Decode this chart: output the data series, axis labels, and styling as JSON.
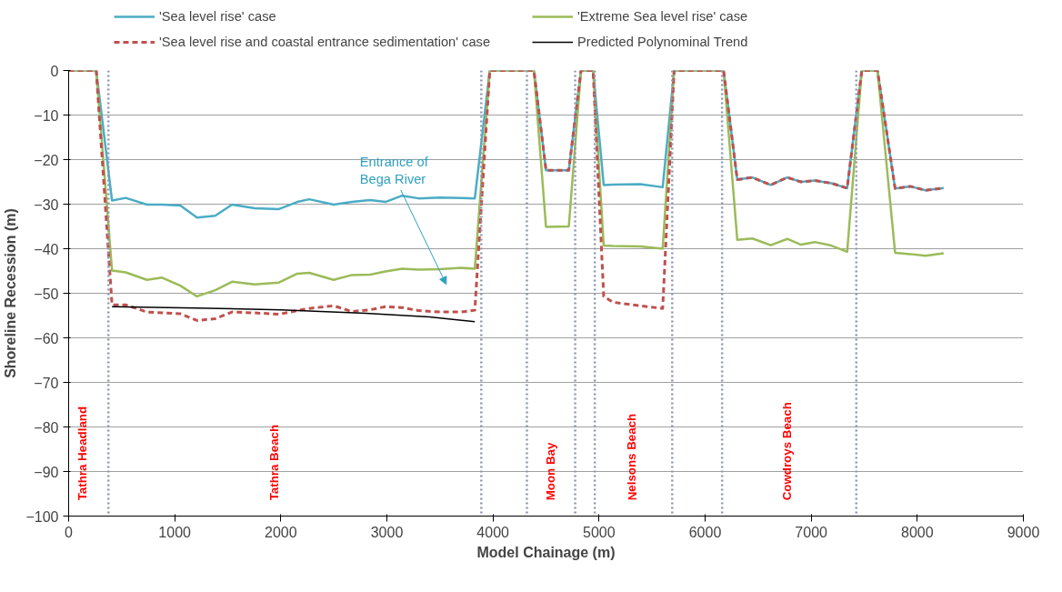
{
  "chart_data": {
    "type": "line",
    "xlabel": "Model Chainage (m)",
    "ylabel": "Shoreline Recession (m)",
    "xlim": [
      0,
      9000
    ],
    "xticks": [
      0,
      1000,
      2000,
      3000,
      4000,
      5000,
      6000,
      7000,
      8000,
      9000
    ],
    "ylim": [
      -100,
      0
    ],
    "yticks": [
      -100,
      -90,
      -80,
      -70,
      -60,
      -50,
      -40,
      -30,
      -20,
      -10,
      0
    ],
    "grid": "y",
    "legend": "top",
    "marker": "none",
    "x": [
      0,
      260,
      409,
      538,
      738,
      881,
      1053,
      1210,
      1382,
      1540,
      1754,
      1983,
      2155,
      2269,
      2498,
      2670,
      2842,
      2986,
      3143,
      3300,
      3500,
      3700,
      3829,
      3970,
      4386,
      4500,
      4715,
      4830,
      4944,
      5044,
      5130,
      5388,
      5600,
      5708,
      6174,
      6303,
      6446,
      6618,
      6775,
      6904,
      7033,
      7190,
      7339,
      7477,
      7625,
      7791,
      7934,
      8077,
      8249
    ],
    "series": [
      {
        "name": "'Sea level rise' case",
        "color": "#4bacc6",
        "line_style": "solid",
        "values": [
          0,
          0,
          -29.2,
          -28.6,
          -30.1,
          -30.1,
          -30.3,
          -33.0,
          -32.6,
          -30.1,
          -30.9,
          -31.1,
          -29.5,
          -28.9,
          -30.1,
          -29.5,
          -29.1,
          -29.5,
          -28.1,
          -28.7,
          -28.5,
          -28.6,
          -28.7,
          0,
          0,
          -22.4,
          -22.4,
          0,
          0,
          -25.7,
          -25.6,
          -25.5,
          -26.2,
          0,
          0,
          -24.5,
          -24.0,
          -25.7,
          -24.0,
          -25.0,
          -24.7,
          -25.3,
          -26.4,
          0,
          0,
          -26.5,
          -26.0,
          -26.9,
          -26.4
        ]
      },
      {
        "name": "'Extreme Sea level rise' case",
        "color": "#9bbb59",
        "line_style": "solid",
        "values": [
          0,
          0,
          -44.9,
          -45.3,
          -47.0,
          -46.5,
          -48.3,
          -50.7,
          -49.3,
          -47.4,
          -48.0,
          -47.6,
          -45.6,
          -45.4,
          -47.0,
          -45.9,
          -45.8,
          -45.1,
          -44.5,
          -44.7,
          -44.6,
          -44.3,
          -44.5,
          0,
          0,
          -35.1,
          -35.0,
          0,
          0,
          -39.3,
          -39.4,
          -39.5,
          -40.0,
          0,
          0,
          -38.0,
          -37.7,
          -39.2,
          -37.8,
          -39.1,
          -38.5,
          -39.3,
          -40.7,
          0,
          0,
          -40.9,
          -41.2,
          -41.6,
          -41.0
        ]
      },
      {
        "name": "'Sea level rise and coastal entrance sedimentation' case",
        "color": "#c0504d",
        "line_style": "dashed",
        "values": [
          0,
          0,
          -52.6,
          -52.6,
          -54.2,
          -54.4,
          -54.6,
          -56.1,
          -55.7,
          -54.2,
          -54.4,
          -54.7,
          -53.9,
          -53.4,
          -52.8,
          -54.1,
          -53.7,
          -53.0,
          -53.2,
          -53.9,
          -54.2,
          -54.2,
          -53.8,
          0,
          0,
          -22.4,
          -22.4,
          0,
          0,
          -50.7,
          -52.0,
          -52.8,
          -53.4,
          0,
          0,
          -24.5,
          -24.0,
          -25.7,
          -24.0,
          -25.0,
          -24.7,
          -25.3,
          -26.4,
          0,
          0,
          -26.5,
          -26.0,
          -26.9,
          -26.4
        ]
      },
      {
        "name": "Predicted Polynominal Trend",
        "color": "#000000",
        "line_style": "solid",
        "x": [
          409,
          1200,
          2000,
          2800,
          3400,
          3829
        ],
        "values": [
          -53.0,
          -53.3,
          -53.7,
          -54.5,
          -55.3,
          -56.4
        ]
      }
    ],
    "ref_lines": [
      {
        "axis": "x",
        "value": 375,
        "color": "#8c96b4",
        "line_style": "dotted"
      },
      {
        "axis": "x",
        "value": 3890,
        "color": "#8c96b4",
        "line_style": "dotted"
      },
      {
        "axis": "x",
        "value": 4320,
        "color": "#8c96b4",
        "line_style": "dotted"
      },
      {
        "axis": "x",
        "value": 4775,
        "color": "#8c96b4",
        "line_style": "dotted"
      },
      {
        "axis": "x",
        "value": 4960,
        "color": "#8c96b4",
        "line_style": "dotted"
      },
      {
        "axis": "x",
        "value": 5690,
        "color": "#8c96b4",
        "line_style": "dotted"
      },
      {
        "axis": "x",
        "value": 6160,
        "color": "#8c96b4",
        "line_style": "dotted"
      },
      {
        "axis": "x",
        "value": 7425,
        "color": "#8c96b4",
        "line_style": "dotted"
      }
    ],
    "annotations": [
      "Tathra Headland",
      "Tathra Beach",
      "Moon Bay",
      "Nelsons Beach",
      "Cowdroys Beach",
      "Entrance of\nBega River"
    ]
  }
}
